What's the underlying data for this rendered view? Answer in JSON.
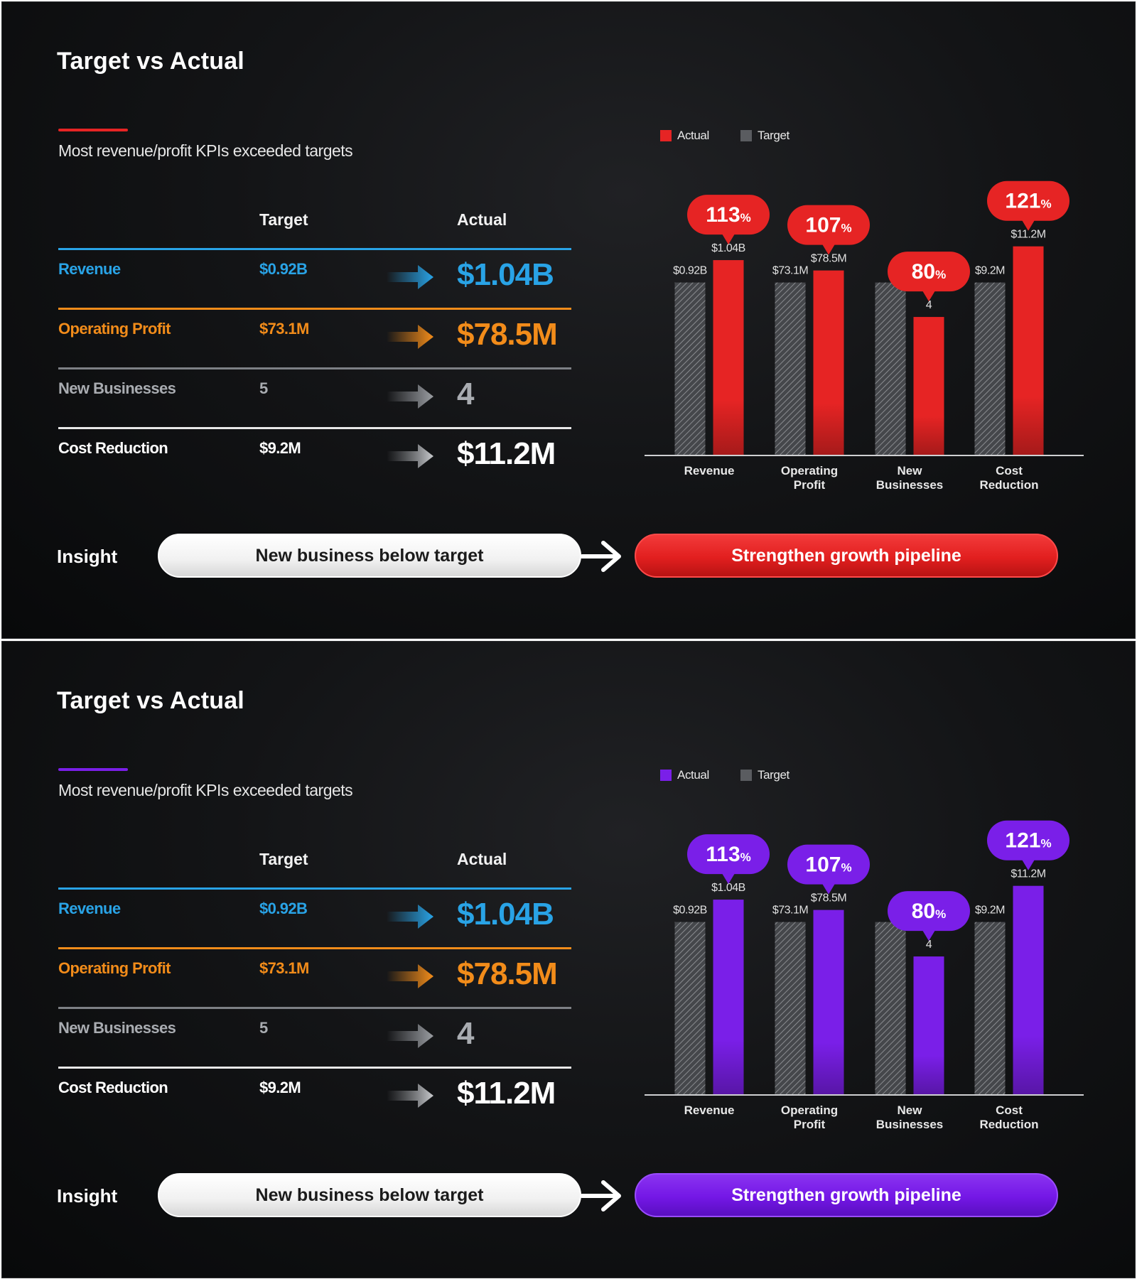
{
  "slides": [
    {
      "theme": "red",
      "title": "Target vs Actual",
      "subtitle": "Most revenue/profit KPIs exceeded targets",
      "accent": "#e62424",
      "table": {
        "target_header": "Target",
        "actual_header": "Actual",
        "rows": [
          {
            "name": "Revenue",
            "target": "$0.92B",
            "actual": "$1.04B",
            "color": "#29a3e6"
          },
          {
            "name": "Operating Profit",
            "target": "$73.1M",
            "actual": "$78.5M",
            "color": "#f28c1a"
          },
          {
            "name": "New Businesses",
            "target": "5",
            "actual": "4",
            "color": "#a9acb1"
          },
          {
            "name": "Cost Reduction",
            "target": "$9.2M",
            "actual": "$11.2M",
            "color": "#ffffff"
          }
        ]
      },
      "insight": {
        "label": "Insight",
        "finding": "New business below target",
        "action": "Strengthen growth pipeline"
      },
      "chart_data": {
        "type": "bar",
        "categories": [
          "Revenue",
          "Operating Profit",
          "New Businesses",
          "Cost Reduction"
        ],
        "category_lines": [
          [
            "Revenue"
          ],
          [
            "Operating",
            "Profit"
          ],
          [
            "New",
            "Businesses"
          ],
          [
            "Cost",
            "Reduction"
          ]
        ],
        "legend": [
          "Actual",
          "Target"
        ],
        "series": [
          {
            "name": "Target",
            "values": [
              100,
              100,
              100,
              100
            ],
            "labels": [
              "$0.92B",
              "$73.1M",
              "5",
              "$9.2M"
            ]
          },
          {
            "name": "Actual",
            "values": [
              113,
              107,
              80,
              121
            ],
            "labels": [
              "$1.04B",
              "$78.5M",
              "4",
              "$11.2M"
            ]
          }
        ],
        "attainment_pct": [
          "113",
          "107",
          "80",
          "121"
        ],
        "pct_symbol": "%",
        "actual_color": "#e62424",
        "target_color": "#5a5c60",
        "ylim": [
          0,
          125
        ]
      }
    },
    {
      "theme": "purple",
      "title": "Target vs Actual",
      "subtitle": "Most revenue/profit KPIs exceeded targets",
      "accent": "#7a1fe8",
      "table": {
        "target_header": "Target",
        "actual_header": "Actual",
        "rows": [
          {
            "name": "Revenue",
            "target": "$0.92B",
            "actual": "$1.04B",
            "color": "#29a3e6"
          },
          {
            "name": "Operating Profit",
            "target": "$73.1M",
            "actual": "$78.5M",
            "color": "#f28c1a"
          },
          {
            "name": "New Businesses",
            "target": "5",
            "actual": "4",
            "color": "#a9acb1"
          },
          {
            "name": "Cost Reduction",
            "target": "$9.2M",
            "actual": "$11.2M",
            "color": "#ffffff"
          }
        ]
      },
      "insight": {
        "label": "Insight",
        "finding": "New business below target",
        "action": "Strengthen growth pipeline"
      },
      "chart_data": {
        "type": "bar",
        "categories": [
          "Revenue",
          "Operating Profit",
          "New Businesses",
          "Cost Reduction"
        ],
        "category_lines": [
          [
            "Revenue"
          ],
          [
            "Operating",
            "Profit"
          ],
          [
            "New",
            "Businesses"
          ],
          [
            "Cost",
            "Reduction"
          ]
        ],
        "legend": [
          "Actual",
          "Target"
        ],
        "series": [
          {
            "name": "Target",
            "values": [
              100,
              100,
              100,
              100
            ],
            "labels": [
              "$0.92B",
              "$73.1M",
              "5",
              "$9.2M"
            ]
          },
          {
            "name": "Actual",
            "values": [
              113,
              107,
              80,
              121
            ],
            "labels": [
              "$1.04B",
              "$78.5M",
              "4",
              "$11.2M"
            ]
          }
        ],
        "attainment_pct": [
          "113",
          "107",
          "80",
          "121"
        ],
        "pct_symbol": "%",
        "actual_color": "#7a1fe8",
        "target_color": "#5a5c60",
        "ylim": [
          0,
          125
        ]
      }
    }
  ]
}
